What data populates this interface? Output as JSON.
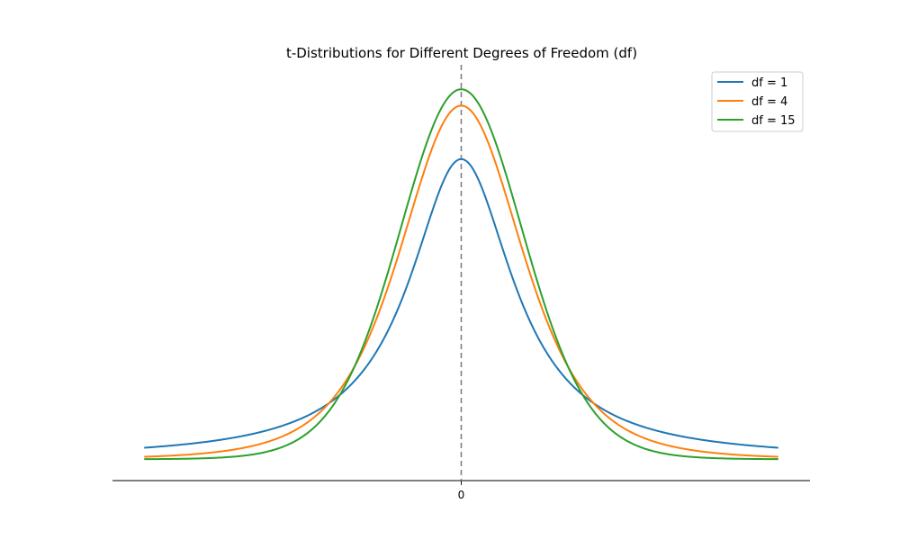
{
  "chart_data": {
    "type": "line",
    "title": "t-Distributions for Different Degrees of Freedom (df)",
    "xlabel": "",
    "ylabel": "",
    "x_range": [
      -5,
      5
    ],
    "y_range": [
      -0.0226,
      0.4183
    ],
    "x_ticks": [
      0
    ],
    "x_tick_labels": [
      "0"
    ],
    "y_ticks_visible": false,
    "grid": false,
    "legend_position": "top-right",
    "reference_line": {
      "x": 0,
      "style": "dashed",
      "color": "#808080"
    },
    "series": [
      {
        "name": "df = 1",
        "df": 1,
        "color": "#1f77b4",
        "x": [
          -5,
          -4,
          -3,
          -2,
          -1.5,
          -1,
          -0.5,
          0,
          0.5,
          1,
          1.5,
          2,
          3,
          4,
          5
        ],
        "y": [
          0.0122,
          0.0187,
          0.0318,
          0.0637,
          0.0979,
          0.1592,
          0.2546,
          0.3183,
          0.2546,
          0.1592,
          0.0979,
          0.0637,
          0.0318,
          0.0187,
          0.0122
        ]
      },
      {
        "name": "df = 4",
        "df": 4,
        "color": "#ff7f0e",
        "x": [
          -5,
          -4,
          -3,
          -2,
          -1.5,
          -1,
          -0.5,
          0,
          0.5,
          1,
          1.5,
          2,
          3,
          4,
          5
        ],
        "y": [
          0.0042,
          0.0067,
          0.0188,
          0.0663,
          0.1245,
          0.2147,
          0.3222,
          0.3751,
          0.3222,
          0.2147,
          0.1245,
          0.0663,
          0.0188,
          0.0067,
          0.0042
        ]
      },
      {
        "name": "df = 15",
        "df": 15,
        "color": "#2ca02c",
        "x": [
          -5,
          -4,
          -3,
          -2,
          -1.5,
          -1,
          -0.5,
          0,
          0.5,
          1,
          1.5,
          2,
          3,
          4,
          5
        ],
        "y": [
          0.0001,
          0.0007,
          0.0096,
          0.0593,
          0.129,
          0.2385,
          0.3474,
          0.3965,
          0.3474,
          0.2385,
          0.129,
          0.0593,
          0.0096,
          0.0007,
          0.0001
        ]
      }
    ]
  }
}
